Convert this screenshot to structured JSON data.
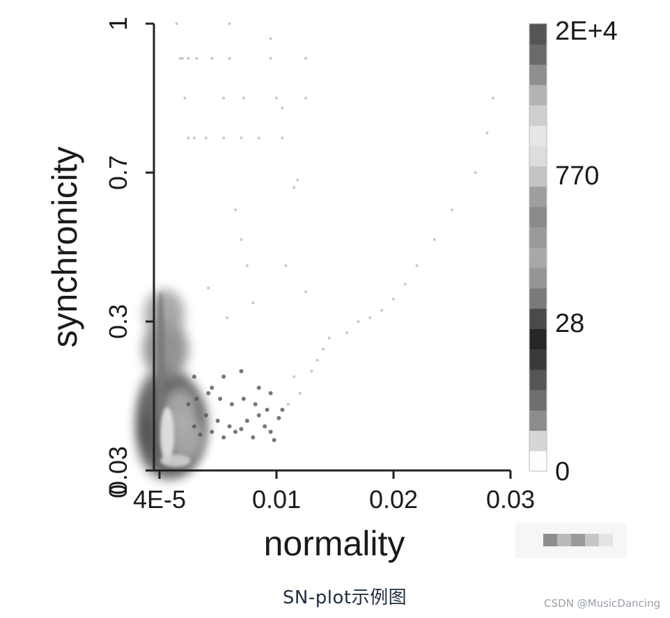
{
  "chart_data": {
    "type": "heatmap",
    "title": "",
    "xlabel": "normality",
    "ylabel": "synchronicity",
    "xlim": [
      4e-05,
      0.03
    ],
    "ylim": [
      0.03,
      1
    ],
    "x_ticks": [
      {
        "value": 4e-05,
        "label": "4E-5"
      },
      {
        "value": 0.01,
        "label": "0.01"
      },
      {
        "value": 0.02,
        "label": "0.02"
      },
      {
        "value": 0.03,
        "label": "0.03"
      }
    ],
    "y_ticks": [
      {
        "value": 0.03,
        "label": "0.03"
      },
      {
        "value": 0.3,
        "label": "0.3"
      },
      {
        "value": 0.7,
        "label": "0.7"
      },
      {
        "value": 1,
        "label": "1"
      }
    ],
    "leading_zero_label": "0",
    "colorbar": {
      "labels": [
        {
          "value": 0,
          "label": "0"
        },
        {
          "value": 28,
          "label": "28"
        },
        {
          "value": 770,
          "label": "770"
        },
        {
          "value": 20000,
          "label": "2E+4"
        }
      ],
      "colors": [
        "#fdfdfd",
        "#d6d6d6",
        "#8c8c8c",
        "#6e6e6e",
        "#555555",
        "#3a3a3a",
        "#262626",
        "#4a4a4a",
        "#7a7a7a",
        "#959595",
        "#a8a8a8",
        "#9a9a9a",
        "#8a8a8a",
        "#9e9e9e",
        "#c4c4c4",
        "#dddddd",
        "#e6e6e6",
        "#cfcfcf",
        "#b3b3b3",
        "#8e8e8e",
        "#6a6a6a",
        "#555555"
      ]
    },
    "density_blobs": [
      {
        "x": 0.0007,
        "y": 0.12,
        "level": 21
      },
      {
        "x": 0.0004,
        "y": 0.08,
        "level": 17
      },
      {
        "x": 0.0003,
        "y": 0.16,
        "level": 15
      },
      {
        "x": 0.0002,
        "y": 0.25,
        "level": 12
      },
      {
        "x": 0.0012,
        "y": 0.08,
        "level": 14
      },
      {
        "x": 0.002,
        "y": 0.09,
        "level": 9
      },
      {
        "x": 0.0015,
        "y": 0.14,
        "level": 8
      },
      {
        "x": 0.0001,
        "y": 0.32,
        "level": 10
      }
    ],
    "scatter_points": [
      {
        "x": 0.003,
        "y": 0.11
      },
      {
        "x": 0.0035,
        "y": 0.095
      },
      {
        "x": 0.004,
        "y": 0.13
      },
      {
        "x": 0.0045,
        "y": 0.1
      },
      {
        "x": 0.005,
        "y": 0.12
      },
      {
        "x": 0.0055,
        "y": 0.09
      },
      {
        "x": 0.006,
        "y": 0.11
      },
      {
        "x": 0.0065,
        "y": 0.1
      },
      {
        "x": 0.007,
        "y": 0.105
      },
      {
        "x": 0.0075,
        "y": 0.12
      },
      {
        "x": 0.008,
        "y": 0.09
      },
      {
        "x": 0.0085,
        "y": 0.13
      },
      {
        "x": 0.009,
        "y": 0.11
      },
      {
        "x": 0.0095,
        "y": 0.1
      },
      {
        "x": 0.0025,
        "y": 0.15
      },
      {
        "x": 0.0032,
        "y": 0.16
      },
      {
        "x": 0.0042,
        "y": 0.17
      },
      {
        "x": 0.0052,
        "y": 0.16
      },
      {
        "x": 0.0062,
        "y": 0.15
      },
      {
        "x": 0.0072,
        "y": 0.16
      },
      {
        "x": 0.0082,
        "y": 0.15
      },
      {
        "x": 0.0092,
        "y": 0.14
      },
      {
        "x": 0.0105,
        "y": 0.14
      },
      {
        "x": 0.011,
        "y": 0.15
      },
      {
        "x": 0.0102,
        "y": 0.125
      },
      {
        "x": 0.0098,
        "y": 0.085
      },
      {
        "x": 0.003,
        "y": 0.2
      },
      {
        "x": 0.0045,
        "y": 0.18
      },
      {
        "x": 0.0055,
        "y": 0.2
      },
      {
        "x": 0.007,
        "y": 0.21
      },
      {
        "x": 0.0085,
        "y": 0.18
      },
      {
        "x": 0.0095,
        "y": 0.17
      },
      {
        "x": 0.0115,
        "y": 0.2
      },
      {
        "x": 0.012,
        "y": 0.17
      },
      {
        "x": 0.013,
        "y": 0.21
      },
      {
        "x": 0.0135,
        "y": 0.23
      },
      {
        "x": 0.014,
        "y": 0.25
      },
      {
        "x": 0.0145,
        "y": 0.27
      },
      {
        "x": 0.016,
        "y": 0.28
      },
      {
        "x": 0.017,
        "y": 0.3
      },
      {
        "x": 0.018,
        "y": 0.31
      },
      {
        "x": 0.019,
        "y": 0.33
      },
      {
        "x": 0.02,
        "y": 0.36
      },
      {
        "x": 0.021,
        "y": 0.4
      },
      {
        "x": 0.022,
        "y": 0.45
      },
      {
        "x": 0.0235,
        "y": 0.52
      },
      {
        "x": 0.025,
        "y": 0.6
      },
      {
        "x": 0.027,
        "y": 0.7
      },
      {
        "x": 0.028,
        "y": 0.78
      },
      {
        "x": 0.008,
        "y": 0.35
      },
      {
        "x": 0.0075,
        "y": 0.45
      },
      {
        "x": 0.0065,
        "y": 0.6
      },
      {
        "x": 0.007,
        "y": 0.52
      },
      {
        "x": 0.0115,
        "y": 0.66
      },
      {
        "x": 0.0108,
        "y": 0.45
      },
      {
        "x": 0.0058,
        "y": 0.31
      },
      {
        "x": 0.0042,
        "y": 0.39
      },
      {
        "x": 0.0125,
        "y": 0.38
      },
      {
        "x": 0.0018,
        "y": 0.93
      },
      {
        "x": 0.002,
        "y": 0.93
      },
      {
        "x": 0.0025,
        "y": 0.93
      },
      {
        "x": 0.0032,
        "y": 0.93
      },
      {
        "x": 0.0045,
        "y": 0.93
      },
      {
        "x": 0.006,
        "y": 0.93
      },
      {
        "x": 0.0095,
        "y": 0.93
      },
      {
        "x": 0.0125,
        "y": 0.93
      },
      {
        "x": 0.0022,
        "y": 0.85
      },
      {
        "x": 0.0055,
        "y": 0.85
      },
      {
        "x": 0.0072,
        "y": 0.85
      },
      {
        "x": 0.01,
        "y": 0.85
      },
      {
        "x": 0.0125,
        "y": 0.85
      },
      {
        "x": 0.0285,
        "y": 0.85
      },
      {
        "x": 0.0025,
        "y": 0.77
      },
      {
        "x": 0.003,
        "y": 0.77
      },
      {
        "x": 0.004,
        "y": 0.77
      },
      {
        "x": 0.0055,
        "y": 0.77
      },
      {
        "x": 0.007,
        "y": 0.77
      },
      {
        "x": 0.0085,
        "y": 0.77
      },
      {
        "x": 0.0105,
        "y": 0.77
      },
      {
        "x": 0.0118,
        "y": 0.68
      },
      {
        "x": 0.006,
        "y": 1.0
      },
      {
        "x": 0.0095,
        "y": 0.97
      },
      {
        "x": 0.0015,
        "y": 1.0
      },
      {
        "x": 0.0105,
        "y": 0.83
      }
    ],
    "legend": "none",
    "grid": false
  },
  "caption": "SN-plot示例图",
  "watermark": "CSDN @MusicDancing"
}
